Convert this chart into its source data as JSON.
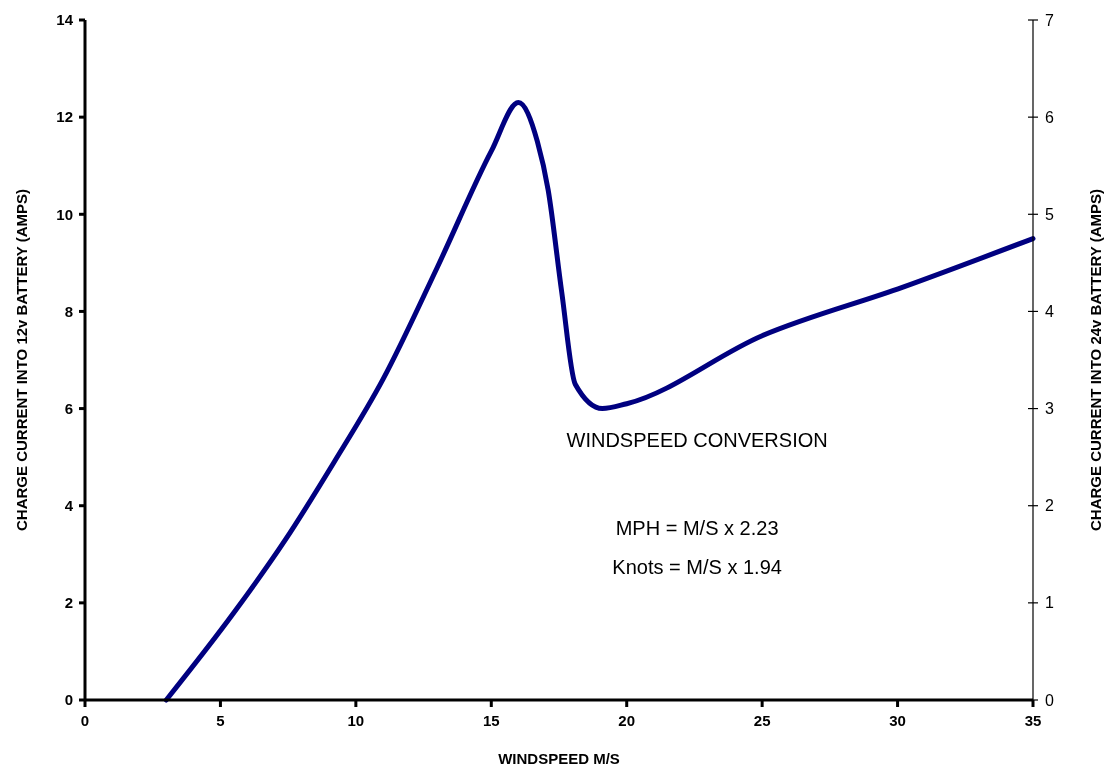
{
  "chart_data": {
    "type": "line",
    "xlabel": "WINDSPEED M/S",
    "ylabel": "CHARGE CURRENT INTO 12v BATTERY (AMPS)",
    "y2label": "CHARGE CURRENT INTO 24v BATTERY (AMPS)",
    "x": [
      3,
      5.5,
      7.4,
      9.2,
      11,
      13,
      15,
      16,
      16.7,
      17.1,
      17.6,
      18.1,
      19.1,
      20,
      25,
      30.2,
      35
    ],
    "series": [
      {
        "color": "#000080",
        "values": [
          0,
          1.8,
          3.3,
          4.9,
          6.6,
          8.9,
          11.3,
          12.3,
          11.5,
          10.5,
          8.4,
          6.5,
          6.0,
          6.1,
          7.5,
          8.5,
          9.5
        ]
      }
    ],
    "xlim": [
      0,
      35
    ],
    "xticks": [
      0,
      5,
      10,
      15,
      20,
      25,
      30,
      35
    ],
    "ylim": [
      0,
      14
    ],
    "yticks": [
      0,
      2,
      4,
      6,
      8,
      10,
      12,
      14
    ],
    "y2lim": [
      0,
      7
    ],
    "y2ticks": [
      0,
      1,
      2,
      3,
      4,
      5,
      6,
      7
    ],
    "grid": false,
    "marker": "none",
    "line_style": "solid",
    "annotations": [
      "WINDSPEED CONVERSION",
      "MPH = M/S x 2.23",
      "Knots = M/S x 1.94"
    ]
  }
}
